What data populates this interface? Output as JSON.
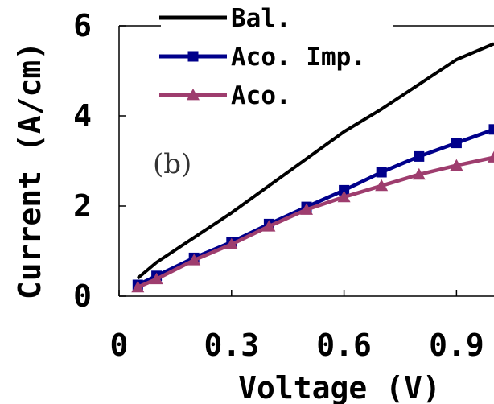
{
  "chart_data": {
    "type": "line",
    "panel_label": "(b)",
    "xlabel": "Voltage (V)",
    "ylabel": "Current (A/cm)",
    "xlim": [
      0,
      1.0
    ],
    "ylim": [
      0,
      6
    ],
    "x_ticks": [
      0,
      0.3,
      0.6,
      0.9
    ],
    "x_tick_labels": [
      "0",
      "0.3",
      "0.6",
      "0.9"
    ],
    "y_ticks": [
      0,
      2,
      4,
      6
    ],
    "y_tick_labels": [
      "0",
      "2",
      "4",
      "6"
    ],
    "grid": false,
    "legend_position": "top-left",
    "series": [
      {
        "name": "Bal.",
        "color": "#000000",
        "marker": "none",
        "x": [
          0.05,
          0.1,
          0.2,
          0.3,
          0.4,
          0.5,
          0.6,
          0.7,
          0.8,
          0.9,
          1.0
        ],
        "y": [
          0.4,
          0.75,
          1.3,
          1.85,
          2.45,
          3.05,
          3.65,
          4.15,
          4.7,
          5.25,
          5.6
        ]
      },
      {
        "name": "Aco. Imp.",
        "color": "#00008b",
        "marker": "square",
        "x": [
          0.05,
          0.1,
          0.2,
          0.3,
          0.4,
          0.5,
          0.6,
          0.7,
          0.8,
          0.9,
          1.0
        ],
        "y": [
          0.25,
          0.45,
          0.85,
          1.2,
          1.6,
          1.98,
          2.35,
          2.75,
          3.1,
          3.4,
          3.7
        ]
      },
      {
        "name": "Aco.",
        "color": "#9e3d6e",
        "marker": "triangle",
        "x": [
          0.05,
          0.1,
          0.2,
          0.3,
          0.4,
          0.5,
          0.6,
          0.7,
          0.8,
          0.9,
          1.0
        ],
        "y": [
          0.2,
          0.38,
          0.8,
          1.15,
          1.55,
          1.92,
          2.2,
          2.45,
          2.7,
          2.9,
          3.08
        ]
      }
    ]
  }
}
